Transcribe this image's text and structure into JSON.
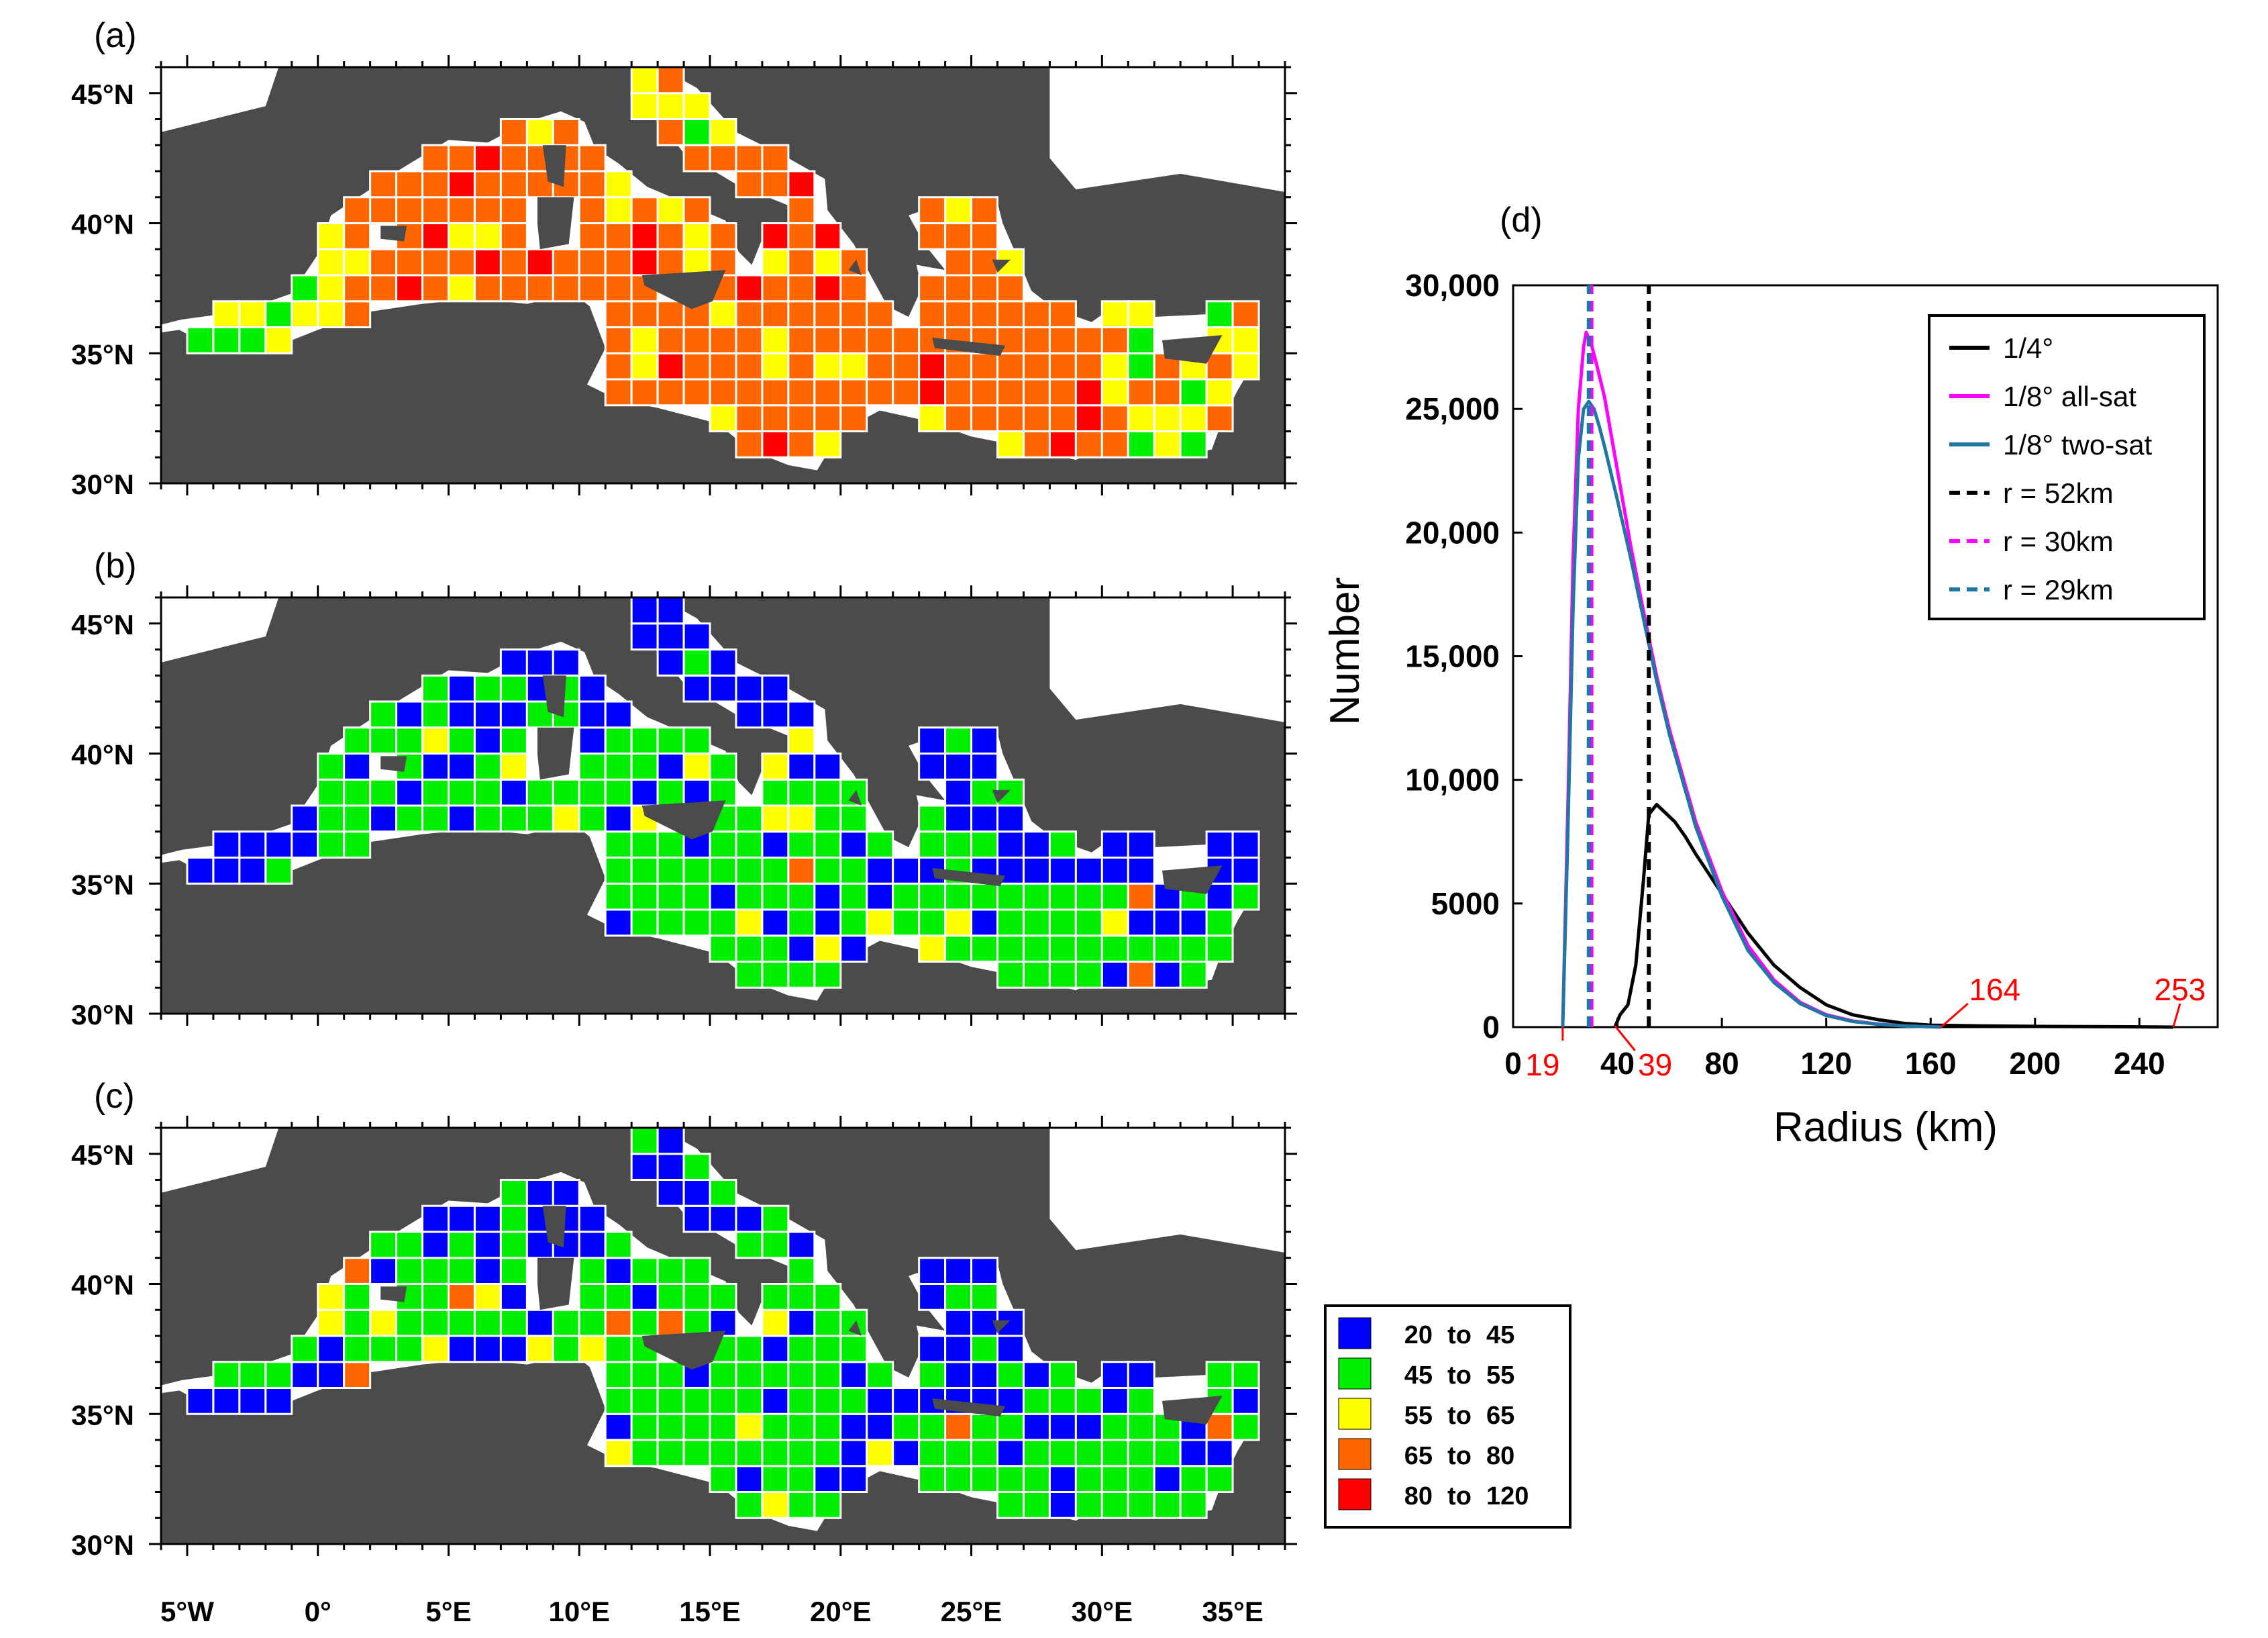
{
  "maps": {
    "panels": [
      {
        "label": "(a)"
      },
      {
        "label": "(b)"
      },
      {
        "label": "(c)"
      }
    ],
    "lat_labels": [
      "45°N",
      "40°N",
      "35°N",
      "30°N"
    ],
    "lon_labels": [
      "5°W",
      "0°",
      "5°E",
      "10°E",
      "15°E",
      "20°E",
      "25°E",
      "30°E",
      "35°E"
    ],
    "lon_range": [
      -6,
      37
    ],
    "lat_range": [
      30,
      46
    ],
    "colors": {
      "land": "#4b4b4b",
      "sea": "#ffffff",
      "grid": "#ffffff"
    },
    "legend": [
      {
        "from": "20",
        "to": "45",
        "color": "#0000ff"
      },
      {
        "from": "45",
        "to": "55",
        "color": "#00ee00"
      },
      {
        "from": "55",
        "to": "65",
        "color": "#ffff00"
      },
      {
        "from": "65",
        "to": "80",
        "color": "#ff6600"
      },
      {
        "from": "80",
        "to": "120",
        "color": "#ff0000"
      }
    ],
    "legend_word": "to"
  },
  "chart_data": {
    "type": "line",
    "panel_label": "(d)",
    "xlabel": "Radius (km)",
    "ylabel": "Number",
    "xlim": [
      0,
      270
    ],
    "ylim": [
      0,
      30000
    ],
    "xticks": [
      0,
      40,
      80,
      120,
      160,
      200,
      240
    ],
    "yticks": [
      0,
      5000,
      10000,
      15000,
      20000,
      25000,
      30000
    ],
    "ytick_labels": [
      "0",
      "5000",
      "10,000",
      "15,000",
      "20,000",
      "25,000",
      "30,000"
    ],
    "legend_position": "top-right",
    "series": [
      {
        "name": "1/4°",
        "color": "#000000",
        "style": "solid",
        "x": [
          39,
          41,
          44,
          47,
          50,
          52,
          55,
          58,
          62,
          66,
          70,
          75,
          80,
          90,
          100,
          110,
          120,
          130,
          140,
          150,
          160,
          180,
          200,
          220,
          240,
          253
        ],
        "y": [
          0,
          500,
          900,
          2500,
          6000,
          8600,
          9000,
          8700,
          8300,
          7700,
          7000,
          6200,
          5400,
          3800,
          2500,
          1600,
          900,
          500,
          300,
          150,
          80,
          50,
          30,
          20,
          10,
          0
        ]
      },
      {
        "name": "1/8° all-sat",
        "color": "#ff00ff",
        "style": "solid",
        "x": [
          19,
          21,
          23,
          25,
          27,
          28,
          30,
          32,
          35,
          40,
          45,
          50,
          55,
          60,
          70,
          80,
          90,
          100,
          110,
          120,
          130,
          140,
          150,
          164
        ],
        "y": [
          0,
          9000,
          19000,
          25000,
          27500,
          28100,
          27600,
          26800,
          25500,
          22500,
          19500,
          16800,
          14200,
          12000,
          8300,
          5500,
          3300,
          1900,
          1000,
          500,
          250,
          120,
          50,
          0
        ]
      },
      {
        "name": "1/8° two-sat",
        "color": "#1f77a4",
        "style": "solid",
        "x": [
          19,
          21,
          23,
          25,
          27,
          29,
          31,
          33,
          35,
          40,
          45,
          50,
          55,
          60,
          70,
          80,
          90,
          100,
          110,
          120,
          130,
          140,
          150,
          164
        ],
        "y": [
          0,
          8000,
          17000,
          23000,
          25000,
          25300,
          25000,
          24300,
          23500,
          21300,
          19000,
          16500,
          14000,
          11800,
          8100,
          5300,
          3100,
          1800,
          950,
          470,
          230,
          110,
          45,
          0
        ]
      },
      {
        "name": "r = 52km",
        "color": "#000000",
        "style": "dashed",
        "vline": 52
      },
      {
        "name": "r = 30km",
        "color": "#ff00ff",
        "style": "dashed",
        "vline": 30
      },
      {
        "name": "r = 29km",
        "color": "#1f77a4",
        "style": "dashed",
        "vline": 29
      }
    ],
    "annotations": [
      {
        "text": "19",
        "x": 19
      },
      {
        "text": "39",
        "x": 39
      },
      {
        "text": "164",
        "x": 164
      },
      {
        "text": "253",
        "x": 253
      }
    ],
    "annotation_color": "#ff0000"
  }
}
